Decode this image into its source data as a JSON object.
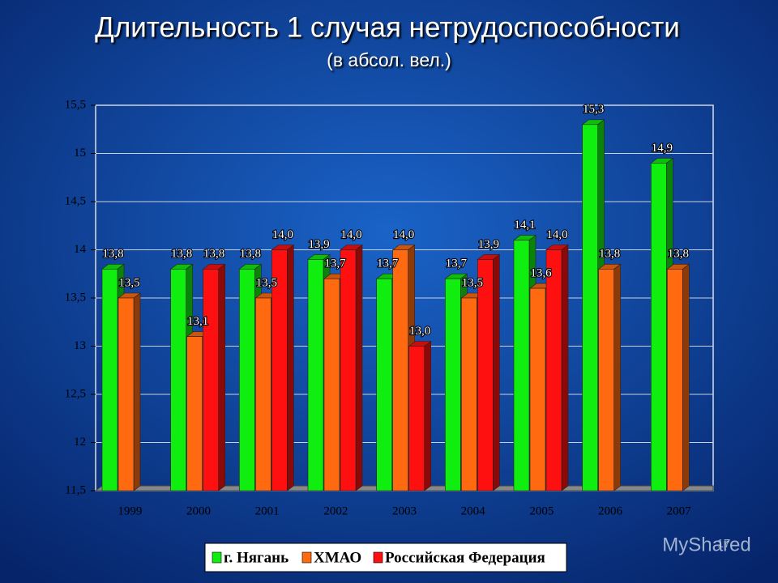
{
  "chart_data": {
    "type": "bar3d",
    "title": "Длительность 1 случая нетрудоспособности",
    "subtitle": "(в абсол. вел.)",
    "categories": [
      "1999",
      "2000",
      "2001",
      "2002",
      "2003",
      "2004",
      "2005",
      "2006",
      "2007"
    ],
    "series": [
      {
        "name": "г. Нягань",
        "color": "#10ee10",
        "values": [
          13.8,
          13.8,
          13.8,
          13.9,
          13.7,
          13.7,
          14.1,
          15.3,
          14.9
        ],
        "value_labels": [
          "13,8",
          "13,8",
          "13,8",
          "13,9",
          "13,7",
          "13,7",
          "14,1",
          "15,3",
          "14,9"
        ]
      },
      {
        "name": "ХМАО",
        "color": "#ff6a10",
        "values": [
          13.5,
          13.1,
          13.5,
          13.7,
          14.0,
          13.5,
          13.6,
          13.8,
          13.8
        ],
        "value_labels": [
          "13,5",
          "13,1",
          "13,5",
          "13,7",
          "14,0",
          "13,5",
          "13,6",
          "13,8",
          "13,8"
        ]
      },
      {
        "name": "Российская Федерация",
        "color": "#ff1010",
        "values": [
          null,
          13.8,
          14.0,
          14.0,
          13.0,
          13.9,
          14.0,
          null,
          null
        ],
        "value_labels": [
          null,
          "13,8",
          "14,0",
          "14,0",
          "13,0",
          "13,9",
          "14,0",
          null,
          null
        ]
      }
    ],
    "ylim": [
      11.5,
      15.5
    ],
    "yticks": [
      {
        "value": 11.5,
        "label": "11,5"
      },
      12,
      {
        "value": 12.5,
        "label": "12,5"
      },
      13,
      {
        "value": 13.5,
        "label": "13,5"
      },
      14,
      {
        "value": 14.5,
        "label": "14,5"
      },
      15,
      {
        "value": 15.5,
        "label": "15,5"
      }
    ],
    "grid": true,
    "legend": "bottom"
  },
  "slide_number": "17",
  "watermark": "MyShared"
}
